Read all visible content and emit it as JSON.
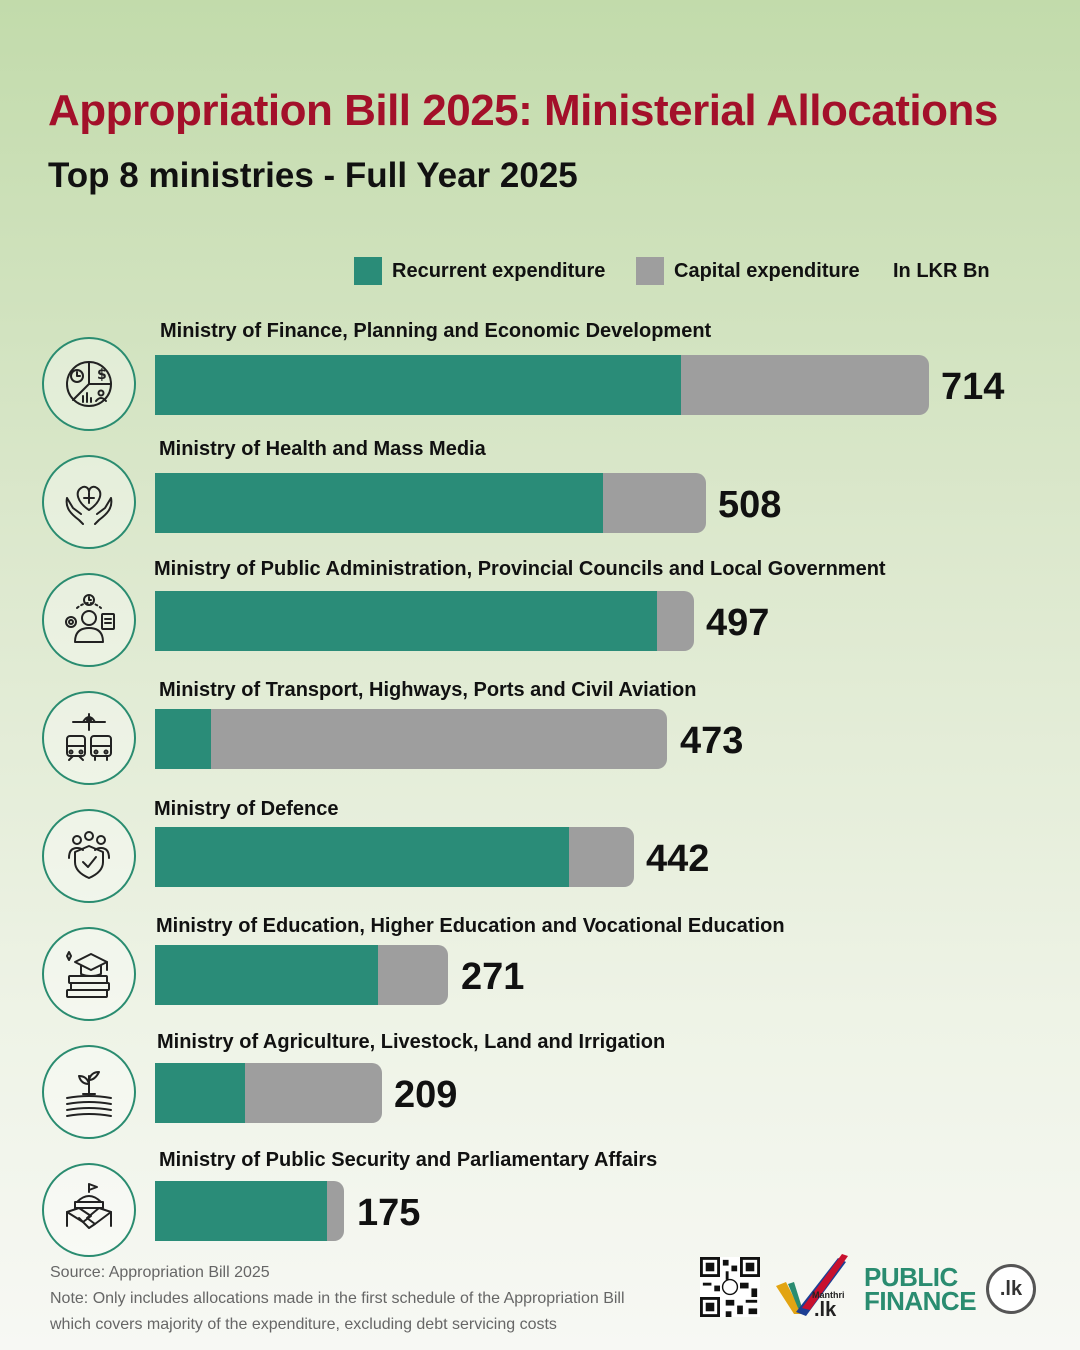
{
  "chart_data": {
    "type": "bar",
    "title": "Appropriation Bill 2025: Ministerial Allocations",
    "subtitle": "Top 8 ministries - Full Year 2025",
    "unit": "In LKR Bn",
    "legend": [
      "Recurrent expenditure",
      "Capital expenditure"
    ],
    "colors": {
      "recurrent": "#2a8c78",
      "capital": "#9e9e9e",
      "title": "#a3102a",
      "icon_ring": "#2a8c70"
    },
    "categories": [
      "Ministry of Finance, Planning and Economic Development",
      "Ministry of Health and Mass Media",
      "Ministry of Public Administration, Provincial Councils and Local Government",
      "Ministry of Transport, Highways, Ports and Civil Aviation",
      "Ministry of Defence",
      "Ministry of Education, Higher Education and Vocational Education",
      "Ministry of Agriculture, Livestock, Land and Irrigation",
      "Ministry of Public Security and Parliamentary Affairs"
    ],
    "totals": [
      714,
      508,
      497,
      473,
      442,
      271,
      209,
      175
    ],
    "total_labels": [
      "714",
      "508",
      "497",
      "473",
      "442",
      "271",
      "209",
      "175"
    ],
    "series": [
      {
        "name": "Recurrent expenditure",
        "values": [
          485,
          413,
          463,
          52,
          382,
          206,
          83,
          159
        ]
      },
      {
        "name": "Capital expenditure",
        "values": [
          229,
          95,
          34,
          421,
          60,
          65,
          126,
          16
        ]
      }
    ],
    "icons": [
      "finance-icon",
      "health-icon",
      "administration-icon",
      "transport-icon",
      "defence-icon",
      "education-icon",
      "agriculture-icon",
      "security-icon"
    ]
  },
  "footer": {
    "source": "Source: Appropriation Bill 2025",
    "note_line1": "Note: Only includes allocations made in the first schedule of the Appropriation Bill",
    "note_line2": "which covers majority of the expenditure, excluding debt servicing costs"
  },
  "logos": {
    "manthri_text": "Manthri",
    "manthri_domain": ".lk",
    "publicfinance_line1": "PUBLIC",
    "publicfinance_line2": "FINANCE",
    "publicfinance_badge": ".lk"
  }
}
